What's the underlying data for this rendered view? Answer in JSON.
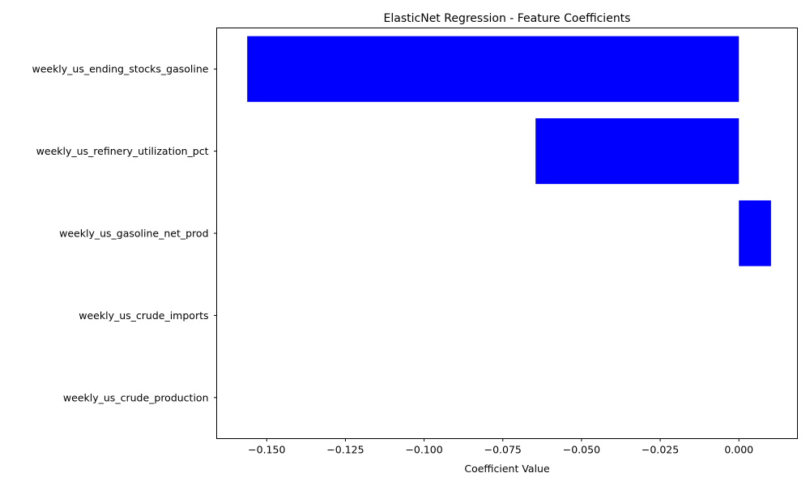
{
  "chart_data": {
    "type": "bar",
    "orientation": "horizontal",
    "title": "ElasticNet Regression - Feature Coefficients",
    "xlabel": "Coefficient Value",
    "ylabel": "",
    "categories": [
      "weekly_us_ending_stocks_gasoline",
      "weekly_us_refinery_utilization_pct",
      "weekly_us_gasoline_net_prod",
      "weekly_us_crude_imports",
      "weekly_us_crude_production"
    ],
    "values": [
      -0.1562,
      -0.0646,
      0.0102,
      0.0,
      0.0
    ],
    "xlim": [
      -0.1659,
      0.0186
    ],
    "xticks": [
      -0.15,
      -0.125,
      -0.1,
      -0.075,
      -0.05,
      -0.025,
      0.0
    ],
    "xtick_labels": [
      "−0.150",
      "−0.125",
      "−0.100",
      "−0.075",
      "−0.050",
      "−0.025",
      "0.000"
    ],
    "bar_color": "#0000ff",
    "grid": false,
    "legend": "none"
  }
}
